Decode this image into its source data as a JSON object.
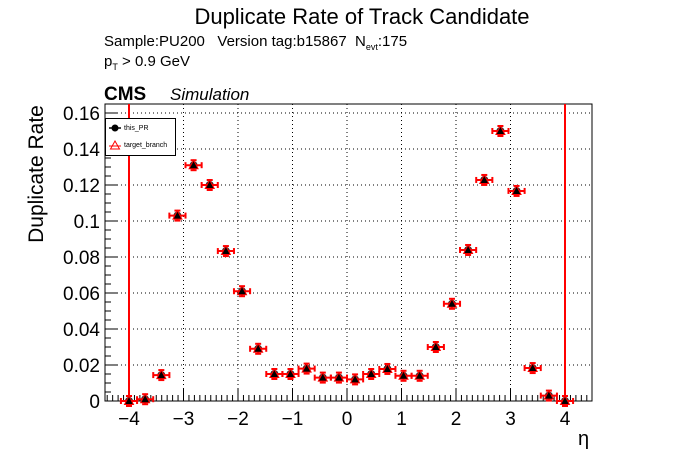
{
  "header": {
    "title": "Duplicate Rate of Track Candidate",
    "sample_line": "Sample:PU200   Version tag:b15867  N",
    "sample_sub": "evt",
    "sample_tail": ":175",
    "cut_prefix": "p",
    "cut_sub": "T",
    "cut_tail": " > 0.9 GeV",
    "experiment": "CMS",
    "status": "Simulation"
  },
  "legend": {
    "entries": [
      {
        "label": "this_PR",
        "marker": "filled-circle",
        "color": "#000000"
      },
      {
        "label": "target_branch",
        "marker": "open-triangle",
        "color": "#ff0000"
      }
    ]
  },
  "chart_data": {
    "type": "scatter",
    "title": "Duplicate Rate of Track Candidate",
    "xlabel": "η",
    "ylabel": "Duplicate Rate",
    "xlim": [
      -4.45,
      4.45
    ],
    "ylim": [
      0,
      0.165
    ],
    "xticks": [
      "−4",
      "−3",
      "−2",
      "−1",
      "0",
      "1",
      "2",
      "3",
      "4"
    ],
    "yticks": [
      "0",
      "0.02",
      "0.04",
      "0.06",
      "0.08",
      "0.1",
      "0.12",
      "0.14",
      "0.16"
    ],
    "grid": true,
    "legend_position": "top-left",
    "vertical_lines_at": [
      -4,
      4
    ],
    "x": [
      -4.0,
      -3.704,
      -3.407,
      -3.111,
      -2.815,
      -2.519,
      -2.222,
      -1.926,
      -1.63,
      -1.333,
      -1.037,
      -0.741,
      -0.444,
      -0.148,
      0.148,
      0.444,
      0.741,
      1.037,
      1.333,
      1.63,
      1.926,
      2.222,
      2.519,
      2.815,
      3.111,
      3.407,
      3.704,
      4.0
    ],
    "series": [
      {
        "name": "this_PR",
        "values": [
          0.0,
          0.001,
          0.0144,
          0.103,
          0.131,
          0.12,
          0.0833,
          0.061,
          0.029,
          0.015,
          0.015,
          0.018,
          0.013,
          0.013,
          0.012,
          0.015,
          0.0178,
          0.014,
          0.014,
          0.03,
          0.054,
          0.0839,
          0.1228,
          0.15,
          0.1167,
          0.0183,
          0.003,
          0.0
        ]
      },
      {
        "name": "target_branch",
        "values": [
          0.0,
          0.001,
          0.0144,
          0.103,
          0.131,
          0.12,
          0.0833,
          0.061,
          0.029,
          0.015,
          0.015,
          0.018,
          0.013,
          0.013,
          0.012,
          0.015,
          0.0178,
          0.014,
          0.014,
          0.03,
          0.054,
          0.0839,
          0.1228,
          0.15,
          0.1167,
          0.0183,
          0.003,
          0.0
        ]
      }
    ]
  }
}
